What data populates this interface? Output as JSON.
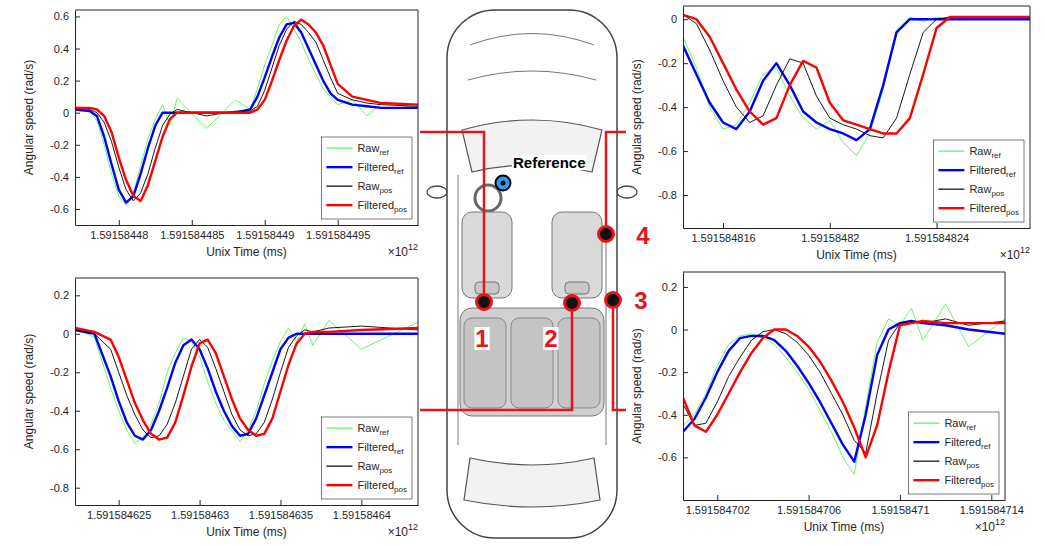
{
  "chart_data": [
    {
      "type": "line",
      "x_label": "Unix Time (ms)",
      "y_label": "Angular speed (rad/s)",
      "x_exponent_label": {
        "base": "×10",
        "exponent": "12"
      },
      "xlim": [
        1.591584477,
        1.5915845005
      ],
      "ylim": [
        -0.7,
        0.64
      ],
      "xticks": [
        1.59158448,
        1.591584485,
        1.59158449,
        1.591584495
      ],
      "yticks": [
        -0.6,
        -0.4,
        -0.2,
        0,
        0.2,
        0.4,
        0.6
      ],
      "grid": false,
      "legend": "lower right",
      "x": [
        1.591584477,
        1.591584478,
        1.5915844785,
        1.591584479,
        1.5915844795,
        1.59158448,
        1.5915844805,
        1.591584481,
        1.5915844815,
        1.591584482,
        1.5915844825,
        1.591584483,
        1.5915844835,
        1.591584484,
        1.591584486,
        1.591584488,
        1.591584489,
        1.5915844895,
        1.59158449,
        1.5915844905,
        1.591584491,
        1.5915844915,
        1.591584492,
        1.5915844925,
        1.591584493,
        1.5915844935,
        1.591584494,
        1.5915844945,
        1.591584495,
        1.591584496,
        1.591584497,
        1.591584498,
        1.5915845005
      ],
      "series": [
        {
          "name": "Raw",
          "subscript": "ref",
          "color": "#5cf25c",
          "values": [
            0.02,
            0.01,
            -0.05,
            -0.2,
            -0.38,
            -0.52,
            -0.58,
            -0.5,
            -0.33,
            -0.16,
            -0.04,
            0.05,
            -0.08,
            0.09,
            -0.1,
            0.08,
            0.02,
            0.15,
            0.3,
            0.42,
            0.55,
            0.6,
            0.52,
            0.44,
            0.33,
            0.24,
            0.15,
            0.1,
            0.05,
            0.08,
            -0.02,
            0.06,
            0.03
          ]
        },
        {
          "name": "Filtered",
          "subscript": "ref",
          "color": "#0000ff",
          "values": [
            0.02,
            0.01,
            -0.02,
            -0.15,
            -0.32,
            -0.48,
            -0.56,
            -0.52,
            -0.38,
            -0.22,
            -0.08,
            0,
            0,
            0,
            0,
            0,
            0.02,
            0.1,
            0.22,
            0.35,
            0.47,
            0.55,
            0.56,
            0.5,
            0.4,
            0.3,
            0.2,
            0.12,
            0.08,
            0.05,
            0.04,
            0.03,
            0.03
          ]
        },
        {
          "name": "Raw",
          "subscript": "pos",
          "color": "#000000",
          "values": [
            0.03,
            0.02,
            0,
            -0.06,
            -0.18,
            -0.34,
            -0.48,
            -0.55,
            -0.5,
            -0.38,
            -0.22,
            -0.08,
            -0.01,
            0.02,
            -0.02,
            0.01,
            0.01,
            0.04,
            0.14,
            0.28,
            0.42,
            0.52,
            0.57,
            0.55,
            0.5,
            0.44,
            0.33,
            0.22,
            0.12,
            0.08,
            0.06,
            0.05,
            0.04
          ]
        },
        {
          "name": "Filtered",
          "subscript": "pos",
          "color": "#ff0000",
          "values": [
            0.03,
            0.03,
            0.02,
            -0.02,
            -0.12,
            -0.28,
            -0.42,
            -0.52,
            -0.55,
            -0.45,
            -0.3,
            -0.15,
            -0.04,
            0,
            0,
            0,
            0,
            0.02,
            0.08,
            0.2,
            0.33,
            0.45,
            0.54,
            0.58,
            0.55,
            0.5,
            0.42,
            0.3,
            0.18,
            0.1,
            0.08,
            0.06,
            0.05
          ]
        }
      ]
    },
    {
      "type": "line",
      "x_label": "Unix Time (ms)",
      "y_label": "Angular speed (rad/s)",
      "x_exponent_label": {
        "base": "×10",
        "exponent": "12"
      },
      "xlim": [
        1.5915846223,
        1.5915846435
      ],
      "ylim": [
        -0.89,
        0.29
      ],
      "xticks": [
        1.591584625,
        1.59158463,
        1.591584635,
        1.59158464
      ],
      "yticks": [
        -0.8,
        -0.6,
        -0.4,
        -0.2,
        0,
        0.2
      ],
      "grid": false,
      "legend": "lower right",
      "x": [
        1.5915846223,
        1.5915846235,
        1.5915846245,
        1.591584625,
        1.5915846255,
        1.591584626,
        1.5915846265,
        1.591584627,
        1.5915846275,
        1.591584628,
        1.5915846285,
        1.591584629,
        1.5915846295,
        1.59158463,
        1.5915846305,
        1.591584631,
        1.5915846315,
        1.591584632,
        1.5915846325,
        1.591584633,
        1.5915846335,
        1.591584634,
        1.5915846345,
        1.591584635,
        1.5915846355,
        1.591584636,
        1.5915846365,
        1.591584637,
        1.591584638,
        1.59158464,
        1.5915846435
      ],
      "series": [
        {
          "name": "Raw",
          "subscript": "ref",
          "color": "#5cf25c",
          "values": [
            0.03,
            -0.02,
            -0.28,
            -0.4,
            -0.5,
            -0.57,
            -0.54,
            -0.47,
            -0.36,
            -0.2,
            -0.1,
            -0.02,
            -0.04,
            -0.12,
            -0.25,
            -0.36,
            -0.45,
            -0.5,
            -0.56,
            -0.5,
            -0.4,
            -0.26,
            -0.14,
            -0.04,
            0.03,
            -0.04,
            0.05,
            -0.06,
            0.07,
            -0.08,
            0.06
          ]
        },
        {
          "name": "Filtered",
          "subscript": "ref",
          "color": "#0000ff",
          "values": [
            0.02,
            0,
            -0.22,
            -0.35,
            -0.46,
            -0.53,
            -0.55,
            -0.5,
            -0.4,
            -0.28,
            -0.15,
            -0.06,
            -0.03,
            -0.08,
            -0.18,
            -0.3,
            -0.4,
            -0.48,
            -0.53,
            -0.52,
            -0.44,
            -0.32,
            -0.2,
            -0.08,
            -0.02,
            0,
            0,
            0,
            0,
            0,
            0
          ]
        },
        {
          "name": "Raw",
          "subscript": "pos",
          "color": "#000000",
          "values": [
            0.02,
            0,
            -0.08,
            -0.2,
            -0.32,
            -0.42,
            -0.5,
            -0.54,
            -0.53,
            -0.47,
            -0.36,
            -0.22,
            -0.08,
            -0.03,
            -0.07,
            -0.18,
            -0.3,
            -0.42,
            -0.5,
            -0.53,
            -0.52,
            -0.46,
            -0.34,
            -0.2,
            -0.07,
            -0.01,
            0.02,
            0.01,
            0.03,
            0.04,
            0.02
          ]
        },
        {
          "name": "Filtered",
          "subscript": "pos",
          "color": "#ff0000",
          "values": [
            0.03,
            0.01,
            -0.03,
            -0.12,
            -0.24,
            -0.36,
            -0.45,
            -0.52,
            -0.55,
            -0.54,
            -0.46,
            -0.32,
            -0.17,
            -0.05,
            -0.03,
            -0.1,
            -0.22,
            -0.34,
            -0.44,
            -0.5,
            -0.53,
            -0.52,
            -0.44,
            -0.3,
            -0.16,
            -0.05,
            0,
            0.01,
            0.01,
            0.02,
            0.03
          ]
        }
      ]
    },
    {
      "type": "line",
      "x_label": "Unix Time (ms)",
      "y_label": "Angular speed (rad/s)",
      "x_exponent_label": {
        "base": "×10",
        "exponent": "12"
      },
      "xlim": [
        1.5915847005,
        1.5915847146
      ],
      "ylim": [
        -0.8,
        0.27
      ],
      "xticks": [
        1.591584702,
        1.591584706,
        1.59158471,
        1.591584714
      ],
      "yticks": [
        -0.6,
        -0.4,
        -0.2,
        0,
        0.2
      ],
      "grid": false,
      "legend": "lower right",
      "x": [
        1.5915847005,
        1.591584701,
        1.5915847015,
        1.591584702,
        1.5915847025,
        1.591584703,
        1.5915847035,
        1.591584704,
        1.5915847045,
        1.591584705,
        1.5915847055,
        1.591584706,
        1.5915847065,
        1.591584707,
        1.5915847075,
        1.591584708,
        1.5915847085,
        1.591584709,
        1.5915847095,
        1.59158471,
        1.5915847105,
        1.591584711,
        1.591584712,
        1.591584713,
        1.5915847146
      ],
      "series": [
        {
          "name": "Raw",
          "subscript": "ref",
          "color": "#5cf25c",
          "values": [
            -0.45,
            -0.4,
            -0.3,
            -0.17,
            -0.07,
            -0.03,
            -0.02,
            -0.04,
            -0.07,
            -0.13,
            -0.2,
            -0.28,
            -0.38,
            -0.48,
            -0.6,
            -0.68,
            -0.36,
            -0.06,
            0.05,
            0.02,
            0.1,
            -0.05,
            0.12,
            -0.08,
            0.05
          ]
        },
        {
          "name": "Filtered",
          "subscript": "ref",
          "color": "#0000ff",
          "values": [
            -0.48,
            -0.42,
            -0.32,
            -0.2,
            -0.1,
            -0.04,
            -0.03,
            -0.03,
            -0.05,
            -0.1,
            -0.17,
            -0.25,
            -0.34,
            -0.44,
            -0.54,
            -0.62,
            -0.4,
            -0.12,
            0,
            0.03,
            0.04,
            0.03,
            0.02,
            0,
            -0.02
          ]
        },
        {
          "name": "Raw",
          "subscript": "pos",
          "color": "#000000",
          "values": [
            -0.35,
            -0.45,
            -0.44,
            -0.34,
            -0.22,
            -0.13,
            -0.05,
            -0.01,
            0,
            -0.02,
            -0.06,
            -0.12,
            -0.2,
            -0.3,
            -0.4,
            -0.52,
            -0.58,
            -0.3,
            -0.05,
            0.03,
            0.04,
            0.03,
            0.05,
            0.02,
            0.04
          ]
        },
        {
          "name": "Filtered",
          "subscript": "pos",
          "color": "#ff0000",
          "values": [
            -0.32,
            -0.45,
            -0.48,
            -0.4,
            -0.3,
            -0.2,
            -0.11,
            -0.04,
            0,
            0,
            -0.03,
            -0.08,
            -0.15,
            -0.24,
            -0.34,
            -0.46,
            -0.6,
            -0.45,
            -0.2,
            0.02,
            0.03,
            0.04,
            0.03,
            0.03,
            0.03
          ]
        }
      ]
    },
    {
      "type": "line",
      "x_label": "Unix Time (ms)",
      "y_label": "Angular speed (rad/s)",
      "x_exponent_label": {
        "base": "×10",
        "exponent": "12"
      },
      "xlim": [
        1.5915848145,
        1.5915848275
      ],
      "ylim": [
        -0.95,
        0.06
      ],
      "xticks": [
        1.591584816,
        1.59158482,
        1.591584824
      ],
      "yticks": [
        -0.8,
        -0.6,
        -0.4,
        -0.2,
        0
      ],
      "grid": false,
      "legend": "lower right",
      "x": [
        1.5915848145,
        1.591584815,
        1.5915848155,
        1.591584816,
        1.5915848165,
        1.591584817,
        1.5915848175,
        1.591584818,
        1.5915848185,
        1.591584819,
        1.5915848195,
        1.59158482,
        1.5915848205,
        1.591584821,
        1.5915848215,
        1.591584822,
        1.5915848225,
        1.591584823,
        1.5915848235,
        1.591584824,
        1.5915848245,
        1.591584825,
        1.591584826,
        1.5915848275
      ],
      "series": [
        {
          "name": "Raw",
          "subscript": "ref",
          "color": "#5cf25c",
          "values": [
            -0.08,
            -0.22,
            -0.4,
            -0.5,
            -0.48,
            -0.38,
            -0.25,
            -0.22,
            -0.35,
            -0.45,
            -0.5,
            -0.46,
            -0.56,
            -0.62,
            -0.52,
            -0.32,
            -0.05,
            0.01,
            -0.01,
            0.01,
            0,
            0.01,
            0,
            0
          ]
        },
        {
          "name": "Filtered",
          "subscript": "ref",
          "color": "#0000ff",
          "values": [
            -0.12,
            -0.25,
            -0.38,
            -0.47,
            -0.5,
            -0.42,
            -0.28,
            -0.2,
            -0.3,
            -0.42,
            -0.47,
            -0.5,
            -0.52,
            -0.55,
            -0.5,
            -0.3,
            -0.06,
            0,
            0,
            0,
            0,
            0,
            0,
            0
          ]
        },
        {
          "name": "Raw",
          "subscript": "pos",
          "color": "#000000",
          "values": [
            0.02,
            -0.02,
            -0.14,
            -0.28,
            -0.4,
            -0.47,
            -0.44,
            -0.3,
            -0.18,
            -0.2,
            -0.35,
            -0.45,
            -0.48,
            -0.5,
            -0.53,
            -0.54,
            -0.45,
            -0.25,
            -0.06,
            0,
            0.01,
            0.01,
            0.01,
            0.01
          ]
        },
        {
          "name": "Filtered",
          "subscript": "pos",
          "color": "#ff0000",
          "values": [
            0.02,
            0,
            -0.08,
            -0.2,
            -0.32,
            -0.42,
            -0.48,
            -0.45,
            -0.3,
            -0.19,
            -0.22,
            -0.38,
            -0.46,
            -0.48,
            -0.5,
            -0.52,
            -0.52,
            -0.45,
            -0.25,
            -0.04,
            0.01,
            0.01,
            0.01,
            0.01
          ]
        }
      ]
    }
  ],
  "diagram": {
    "reference_label": "Reference",
    "markers": [
      {
        "label": "1"
      },
      {
        "label": "2"
      },
      {
        "label": "3"
      },
      {
        "label": "4"
      }
    ]
  }
}
